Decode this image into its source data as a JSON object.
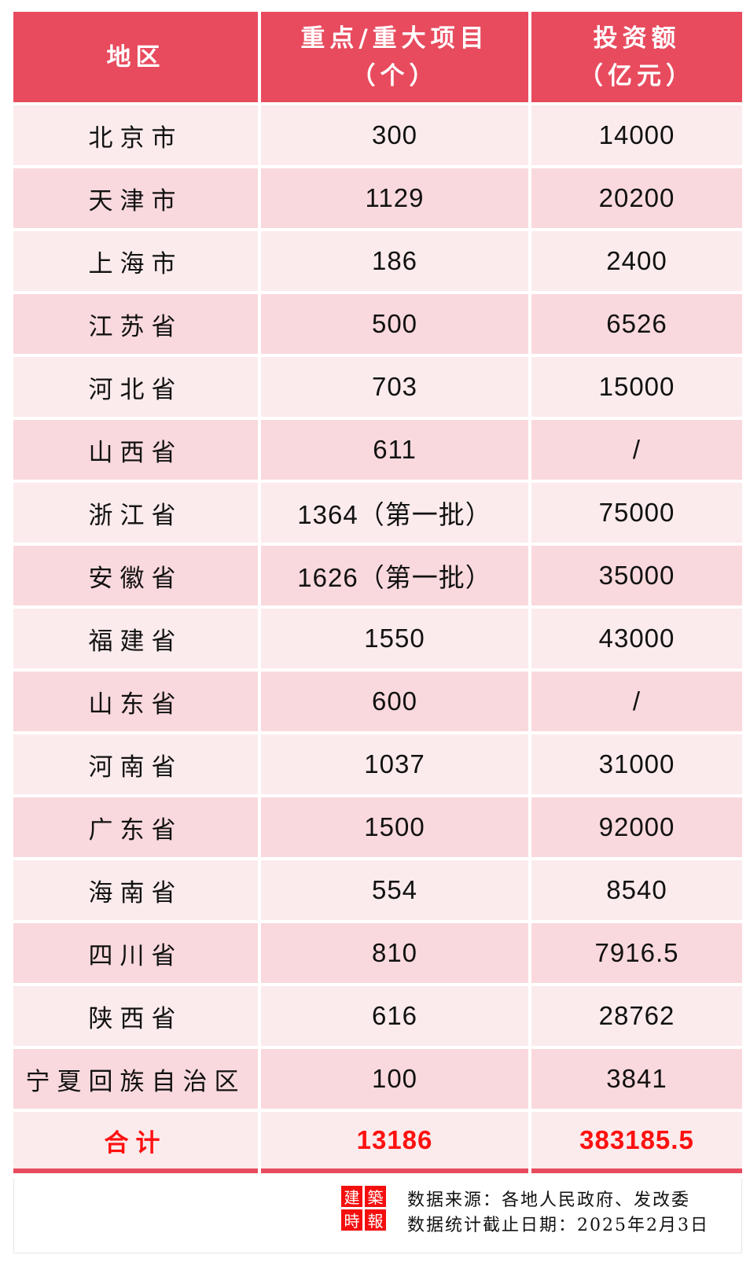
{
  "header": {
    "region": "地区",
    "projects_line1": "重点/重大项目",
    "projects_line2": "（个）",
    "investment_line1": "投资额",
    "investment_line2": "（亿元）"
  },
  "rows": [
    {
      "region": "北京市",
      "projects": "300",
      "investment": "14000"
    },
    {
      "region": "天津市",
      "projects": "1129",
      "investment": "20200"
    },
    {
      "region": "上海市",
      "projects": "186",
      "investment": "2400"
    },
    {
      "region": "江苏省",
      "projects": "500",
      "investment": "6526"
    },
    {
      "region": "河北省",
      "projects": "703",
      "investment": "15000"
    },
    {
      "region": "山西省",
      "projects": "611",
      "investment": "/"
    },
    {
      "region": "浙江省",
      "projects": "1364（第一批）",
      "investment": "75000"
    },
    {
      "region": "安徽省",
      "projects": "1626（第一批）",
      "investment": "35000"
    },
    {
      "region": "福建省",
      "projects": "1550",
      "investment": "43000"
    },
    {
      "region": "山东省",
      "projects": "600",
      "investment": "/"
    },
    {
      "region": "河南省",
      "projects": "1037",
      "investment": "31000"
    },
    {
      "region": "广东省",
      "projects": "1500",
      "investment": "92000"
    },
    {
      "region": "海南省",
      "projects": "554",
      "investment": "8540"
    },
    {
      "region": "四川省",
      "projects": "810",
      "investment": "7916.5"
    },
    {
      "region": "陕西省",
      "projects": "616",
      "investment": "28762"
    },
    {
      "region": "宁夏回族自治区",
      "projects": "100",
      "investment": "3841"
    }
  ],
  "total": {
    "label": "合计",
    "projects": "13186",
    "investment": "383185.5"
  },
  "footer": {
    "logo_chars": [
      "建",
      "築",
      "時",
      "報"
    ],
    "source": "数据来源：各地人民政府、发改委",
    "cutoff": "数据统计截止日期：2025年2月3日"
  },
  "colors": {
    "header": "#e84b5e",
    "row_light": "#fbebec",
    "row_dark": "#f9d9dd",
    "total_text": "#ff1010",
    "logo": "#f40f0f"
  }
}
